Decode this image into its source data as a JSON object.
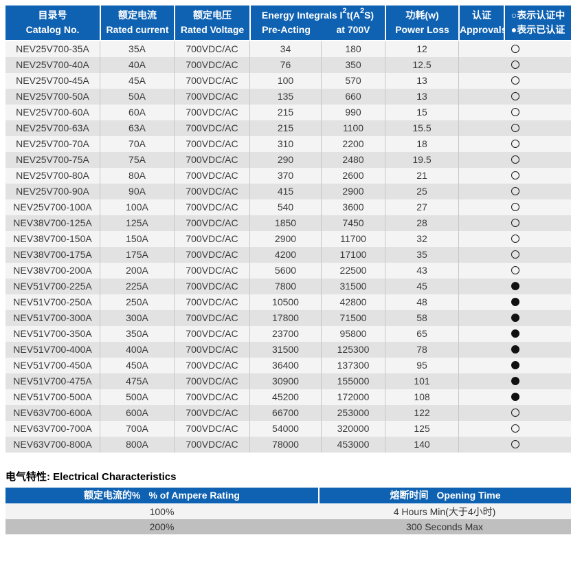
{
  "colors": {
    "header_blue": "#0f62b2",
    "row_light": "#f4f4f4",
    "row_dark": "#e2e2e2",
    "bottom_row_dark": "#bfbfbf",
    "header_text": "#ffffff",
    "body_text": "#3a3a3a"
  },
  "legend_symbols": {
    "pending": "○",
    "certified": "●"
  },
  "main_table": {
    "headers": {
      "catalog_zh": "目录号",
      "catalog_en": "Catalog No.",
      "current_zh": "额定电流",
      "current_en": "Rated current",
      "voltage_zh": "额定电压",
      "voltage_en": "Rated Voltage",
      "energy": {
        "p1": "Energy Integrals I",
        "sup1": "2",
        "p2": "t(A",
        "sup2": "2",
        "p3": "S)"
      },
      "pre_acting": "Pre-Acting",
      "at_700v": "at 700V",
      "power_zh": "功耗(w)",
      "power_en": "Power Loss",
      "approvals_zh": "认证",
      "approvals_en": "Approvals",
      "legend_line1": "○表示认证中",
      "legend_line2": "●表示已认证"
    },
    "rows": [
      {
        "catalog": "NEV25V700-35A",
        "current": "35A",
        "voltage": "700VDC/AC",
        "pre_acting": "34",
        "at_700v": "180",
        "power_loss": "12",
        "approval": "pending"
      },
      {
        "catalog": "NEV25V700-40A",
        "current": "40A",
        "voltage": "700VDC/AC",
        "pre_acting": "76",
        "at_700v": "350",
        "power_loss": "12.5",
        "approval": "pending"
      },
      {
        "catalog": "NEV25V700-45A",
        "current": "45A",
        "voltage": "700VDC/AC",
        "pre_acting": "100",
        "at_700v": "570",
        "power_loss": "13",
        "approval": "pending"
      },
      {
        "catalog": "NEV25V700-50A",
        "current": "50A",
        "voltage": "700VDC/AC",
        "pre_acting": "135",
        "at_700v": "660",
        "power_loss": "13",
        "approval": "pending"
      },
      {
        "catalog": "NEV25V700-60A",
        "current": "60A",
        "voltage": "700VDC/AC",
        "pre_acting": "215",
        "at_700v": "990",
        "power_loss": "15",
        "approval": "pending"
      },
      {
        "catalog": "NEV25V700-63A",
        "current": "63A",
        "voltage": "700VDC/AC",
        "pre_acting": "215",
        "at_700v": "1100",
        "power_loss": "15.5",
        "approval": "pending"
      },
      {
        "catalog": "NEV25V700-70A",
        "current": "70A",
        "voltage": "700VDC/AC",
        "pre_acting": "310",
        "at_700v": "2200",
        "power_loss": "18",
        "approval": "pending"
      },
      {
        "catalog": "NEV25V700-75A",
        "current": "75A",
        "voltage": "700VDC/AC",
        "pre_acting": "290",
        "at_700v": "2480",
        "power_loss": "19.5",
        "approval": "pending"
      },
      {
        "catalog": "NEV25V700-80A",
        "current": "80A",
        "voltage": "700VDC/AC",
        "pre_acting": "370",
        "at_700v": "2600",
        "power_loss": "21",
        "approval": "pending"
      },
      {
        "catalog": "NEV25V700-90A",
        "current": "90A",
        "voltage": "700VDC/AC",
        "pre_acting": "415",
        "at_700v": "2900",
        "power_loss": "25",
        "approval": "pending"
      },
      {
        "catalog": "NEV25V700-100A",
        "current": "100A",
        "voltage": "700VDC/AC",
        "pre_acting": "540",
        "at_700v": "3600",
        "power_loss": "27",
        "approval": "pending"
      },
      {
        "catalog": "NEV38V700-125A",
        "current": "125A",
        "voltage": "700VDC/AC",
        "pre_acting": "1850",
        "at_700v": "7450",
        "power_loss": "28",
        "approval": "pending"
      },
      {
        "catalog": "NEV38V700-150A",
        "current": "150A",
        "voltage": "700VDC/AC",
        "pre_acting": "2900",
        "at_700v": "11700",
        "power_loss": "32",
        "approval": "pending"
      },
      {
        "catalog": "NEV38V700-175A",
        "current": "175A",
        "voltage": "700VDC/AC",
        "pre_acting": "4200",
        "at_700v": "17100",
        "power_loss": "35",
        "approval": "pending"
      },
      {
        "catalog": "NEV38V700-200A",
        "current": "200A",
        "voltage": "700VDC/AC",
        "pre_acting": "5600",
        "at_700v": "22500",
        "power_loss": "43",
        "approval": "pending"
      },
      {
        "catalog": "NEV51V700-225A",
        "current": "225A",
        "voltage": "700VDC/AC",
        "pre_acting": "7800",
        "at_700v": "31500",
        "power_loss": "45",
        "approval": "certified"
      },
      {
        "catalog": "NEV51V700-250A",
        "current": "250A",
        "voltage": "700VDC/AC",
        "pre_acting": "10500",
        "at_700v": "42800",
        "power_loss": "48",
        "approval": "certified"
      },
      {
        "catalog": "NEV51V700-300A",
        "current": "300A",
        "voltage": "700VDC/AC",
        "pre_acting": "17800",
        "at_700v": "71500",
        "power_loss": "58",
        "approval": "certified"
      },
      {
        "catalog": "NEV51V700-350A",
        "current": "350A",
        "voltage": "700VDC/AC",
        "pre_acting": "23700",
        "at_700v": "95800",
        "power_loss": "65",
        "approval": "certified"
      },
      {
        "catalog": "NEV51V700-400A",
        "current": "400A",
        "voltage": "700VDC/AC",
        "pre_acting": "31500",
        "at_700v": "125300",
        "power_loss": "78",
        "approval": "certified"
      },
      {
        "catalog": "NEV51V700-450A",
        "current": "450A",
        "voltage": "700VDC/AC",
        "pre_acting": "36400",
        "at_700v": "137300",
        "power_loss": "95",
        "approval": "certified"
      },
      {
        "catalog": "NEV51V700-475A",
        "current": "475A",
        "voltage": "700VDC/AC",
        "pre_acting": "30900",
        "at_700v": "155000",
        "power_loss": "101",
        "approval": "certified"
      },
      {
        "catalog": "NEV51V700-500A",
        "current": "500A",
        "voltage": "700VDC/AC",
        "pre_acting": "45200",
        "at_700v": "172000",
        "power_loss": "108",
        "approval": "certified"
      },
      {
        "catalog": "NEV63V700-600A",
        "current": "600A",
        "voltage": "700VDC/AC",
        "pre_acting": "66700",
        "at_700v": "253000",
        "power_loss": "122",
        "approval": "pending"
      },
      {
        "catalog": "NEV63V700-700A",
        "current": "700A",
        "voltage": "700VDC/AC",
        "pre_acting": "54000",
        "at_700v": "320000",
        "power_loss": "125",
        "approval": "pending"
      },
      {
        "catalog": "NEV63V700-800A",
        "current": "800A",
        "voltage": "700VDC/AC",
        "pre_acting": "78000",
        "at_700v": "453000",
        "power_loss": "140",
        "approval": "pending"
      }
    ]
  },
  "electrical": {
    "heading_zh": "电气特性:",
    "heading_en": "Electrical Characteristics",
    "headers": {
      "rating_zh": "额定电流的%",
      "rating_en": "% of Ampere Rating",
      "time_zh": "熔断时间",
      "time_en": "Opening Time"
    },
    "rows": [
      {
        "rating": "100%",
        "time": "4 Hours Min(大于4小时)"
      },
      {
        "rating": "200%",
        "time": "300 Seconds Max"
      }
    ]
  }
}
